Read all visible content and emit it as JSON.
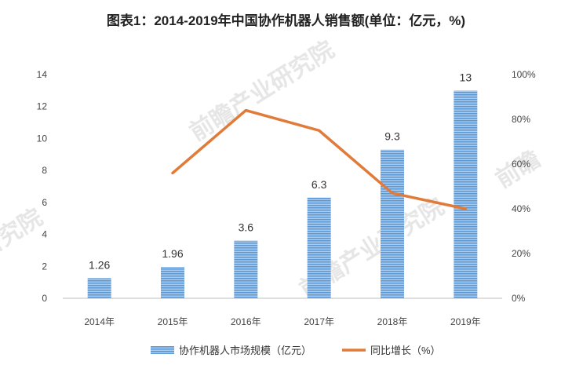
{
  "chart_data": {
    "type": "bar",
    "title": "图表1：2014-2019年中国协作机器人销售额(单位：亿元，%)",
    "categories": [
      "2014年",
      "2015年",
      "2016年",
      "2017年",
      "2018年",
      "2019年"
    ],
    "series": [
      {
        "name": "协作机器人市场规模（亿元）",
        "type": "bar",
        "axis": "left",
        "values": [
          1.26,
          1.96,
          3.6,
          6.3,
          9.3,
          13
        ],
        "labels": [
          "1.26",
          "1.96",
          "3.6",
          "6.3",
          "9.3",
          "13"
        ],
        "color": "#6fa8dc"
      },
      {
        "name": "同比增长（%）",
        "type": "line",
        "axis": "right",
        "values": [
          null,
          56,
          84,
          75,
          47,
          40
        ],
        "color": "#e07b39"
      }
    ],
    "ylim_left": [
      0,
      14
    ],
    "yticks_left": [
      "0",
      "2",
      "4",
      "6",
      "8",
      "10",
      "12",
      "14"
    ],
    "ylim_right": [
      0,
      100
    ],
    "yticks_right": [
      "0%",
      "20%",
      "40%",
      "60%",
      "80%",
      "100%"
    ],
    "legend_position": "bottom",
    "grid": false
  }
}
